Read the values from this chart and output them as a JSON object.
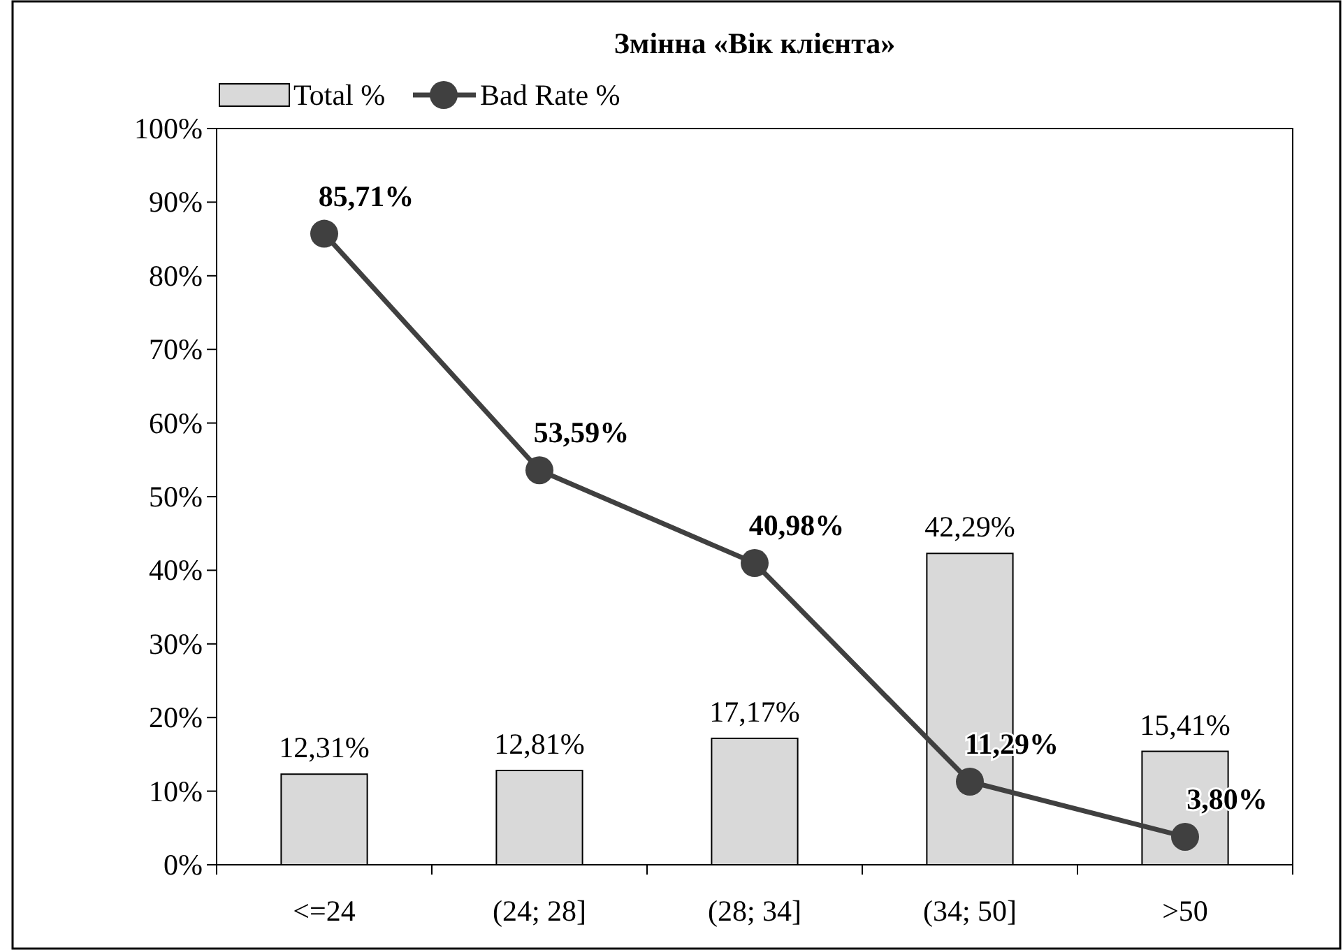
{
  "chart_data": {
    "type": "bar",
    "title": "Змінна «Вік клієнта»",
    "categories": [
      "<=24",
      "(24; 28]",
      "(28; 34]",
      "(34; 50]",
      ">50"
    ],
    "series": [
      {
        "name": "Total %",
        "color": "#d9d9d9",
        "values": [
          12.31,
          12.81,
          17.17,
          42.29,
          15.41
        ],
        "value_labels": [
          "12,31%",
          "12,81%",
          "17,17%",
          "42,29%",
          "15,41%"
        ]
      },
      {
        "name": "Bad Rate %",
        "type": "line",
        "color": "#404040",
        "marker": "circle",
        "values": [
          85.71,
          53.59,
          40.98,
          11.29,
          3.8
        ],
        "value_labels": [
          "85,71%",
          "53,59%",
          "40,98%",
          "11,29%",
          "3,80%"
        ]
      }
    ],
    "ylim": [
      0,
      100
    ],
    "yticks": [
      {
        "value": 0,
        "label": "0%"
      },
      {
        "value": 10,
        "label": "10%"
      },
      {
        "value": 20,
        "label": "20%"
      },
      {
        "value": 30,
        "label": "30%"
      },
      {
        "value": 40,
        "label": "40%"
      },
      {
        "value": 50,
        "label": "50%"
      },
      {
        "value": 60,
        "label": "60%"
      },
      {
        "value": 70,
        "label": "70%"
      },
      {
        "value": 80,
        "label": "80%"
      },
      {
        "value": 90,
        "label": "90%"
      },
      {
        "value": 100,
        "label": "100%"
      }
    ],
    "grid": false,
    "legend": "top left"
  }
}
